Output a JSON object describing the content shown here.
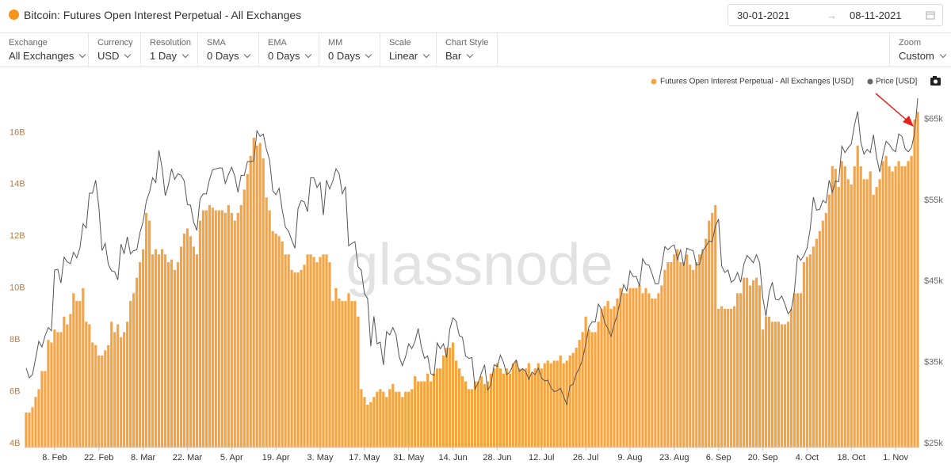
{
  "header": {
    "title": "Bitcoin: Futures Open Interest Perpetual - All Exchanges",
    "date_start": "30-01-2021",
    "date_end": "08-11-2021"
  },
  "controls": [
    {
      "label": "Exchange",
      "value": "All Exchanges"
    },
    {
      "label": "Currency",
      "value": "USD"
    },
    {
      "label": "Resolution",
      "value": "1 Day"
    },
    {
      "label": "SMA",
      "value": "0 Days"
    },
    {
      "label": "EMA",
      "value": "0 Days"
    },
    {
      "label": "MM",
      "value": "0 Days"
    },
    {
      "label": "Scale",
      "value": "Linear"
    },
    {
      "label": "Chart Style",
      "value": "Bar"
    },
    {
      "label": "Zoom",
      "value": "Custom"
    }
  ],
  "chart_data": {
    "type": "bar",
    "watermark": "glassnode",
    "grid": false,
    "legend": "top-right",
    "categories": [
      null,
      null,
      null,
      null,
      null,
      null,
      null,
      null,
      null,
      "8. Feb",
      null,
      null,
      null,
      null,
      null,
      null,
      null,
      null,
      null,
      null,
      null,
      null,
      null,
      "22. Feb",
      null,
      null,
      null,
      null,
      null,
      null,
      null,
      null,
      null,
      null,
      null,
      null,
      null,
      "8. Mar",
      null,
      null,
      null,
      null,
      null,
      null,
      null,
      null,
      null,
      null,
      null,
      null,
      null,
      "22. Mar",
      null,
      null,
      null,
      null,
      null,
      null,
      null,
      null,
      null,
      null,
      null,
      null,
      null,
      "5. Apr",
      null,
      null,
      null,
      null,
      null,
      null,
      null,
      null,
      null,
      null,
      null,
      null,
      null,
      "19. Apr",
      null,
      null,
      null,
      null,
      null,
      null,
      null,
      null,
      null,
      null,
      null,
      null,
      null,
      "3. May",
      null,
      null,
      null,
      null,
      null,
      null,
      null,
      null,
      null,
      null,
      null,
      null,
      null,
      "17. May",
      null,
      null,
      null,
      null,
      null,
      null,
      null,
      null,
      null,
      null,
      null,
      null,
      null,
      "31. May",
      null,
      null,
      null,
      null,
      null,
      null,
      null,
      null,
      null,
      null,
      null,
      null,
      null,
      "14. Jun",
      null,
      null,
      null,
      null,
      null,
      null,
      null,
      null,
      null,
      null,
      null,
      null,
      null,
      "28. Jun",
      null,
      null,
      null,
      null,
      null,
      null,
      null,
      null,
      null,
      null,
      null,
      null,
      null,
      "12. Jul",
      null,
      null,
      null,
      null,
      null,
      null,
      null,
      null,
      null,
      null,
      null,
      null,
      null,
      "26. Jul",
      null,
      null,
      null,
      null,
      null,
      null,
      null,
      null,
      null,
      null,
      null,
      null,
      null,
      "9. Aug",
      null,
      null,
      null,
      null,
      null,
      null,
      null,
      null,
      null,
      null,
      null,
      null,
      null,
      "23. Aug",
      null,
      null,
      null,
      null,
      null,
      null,
      null,
      null,
      null,
      null,
      null,
      null,
      null,
      "6. Sep",
      null,
      null,
      null,
      null,
      null,
      null,
      null,
      null,
      null,
      null,
      null,
      null,
      null,
      "20. Sep",
      null,
      null,
      null,
      null,
      null,
      null,
      null,
      null,
      null,
      null,
      null,
      null,
      null,
      "4. Oct",
      null,
      null,
      null,
      null,
      null,
      null,
      null,
      null,
      null,
      null,
      null,
      null,
      null,
      "18. Oct",
      null,
      null,
      null,
      null,
      null,
      null,
      null,
      null,
      null,
      null,
      null,
      null,
      null,
      "1. Nov",
      null,
      null,
      null,
      null,
      null,
      null,
      null
    ],
    "ylim": [
      3.85,
      17.6
    ],
    "yticks": [
      {
        "value": 4,
        "label": "4B"
      },
      {
        "value": 6,
        "label": "6B"
      },
      {
        "value": 8,
        "label": "8B"
      },
      {
        "value": 10,
        "label": "10B"
      },
      {
        "value": 12,
        "label": "12B"
      },
      {
        "value": 14,
        "label": "14B"
      },
      {
        "value": 16,
        "label": "16B"
      }
    ],
    "y2lim": [
      24500,
      68500
    ],
    "y2ticks": [
      {
        "value": 25000,
        "label": "$25k"
      },
      {
        "value": 35000,
        "label": "$35k"
      },
      {
        "value": 45000,
        "label": "$45k"
      },
      {
        "value": 55000,
        "label": "$55k"
      },
      {
        "value": 65000,
        "label": "$65k"
      }
    ],
    "series": [
      {
        "name": "Futures Open Interest Perpetual - All Exchanges [USD]",
        "color": "#f7a440",
        "values": [
          5.2,
          5.2,
          5.4,
          5.8,
          6.1,
          6.8,
          6.8,
          8.0,
          7.9,
          8.4,
          8.3,
          8.3,
          8.9,
          8.6,
          9.0,
          9.8,
          9.5,
          9.5,
          10.0,
          8.7,
          8.6,
          7.9,
          7.8,
          7.4,
          7.4,
          7.6,
          7.8,
          8.7,
          8.3,
          8.6,
          8.1,
          8.3,
          8.7,
          9.5,
          9.8,
          10.4,
          11.0,
          11.5,
          12.9,
          12.6,
          11.3,
          11.5,
          11.3,
          11.5,
          11.3,
          11.0,
          11.1,
          10.7,
          11.0,
          11.6,
          12.1,
          12.3,
          12.0,
          11.6,
          11.3,
          12.6,
          13.0,
          13.0,
          13.2,
          13.1,
          13.0,
          13.0,
          13.0,
          12.9,
          13.2,
          12.9,
          12.6,
          12.9,
          13.2,
          13.8,
          14.4,
          15.1,
          15.8,
          15.5,
          15.6,
          15.0,
          13.5,
          13.0,
          12.2,
          12.1,
          12.0,
          11.8,
          11.3,
          11.3,
          10.7,
          10.6,
          10.6,
          10.7,
          10.9,
          11.3,
          11.3,
          11.2,
          11.0,
          11.2,
          11.3,
          11.3,
          11.0,
          9.5,
          10.0,
          9.6,
          9.5,
          9.5,
          9.8,
          9.5,
          9.5,
          8.9,
          6.1,
          5.8,
          5.5,
          5.6,
          5.8,
          6.0,
          6.1,
          6.0,
          5.8,
          6.1,
          6.3,
          6.0,
          6.0,
          5.8,
          6.0,
          6.0,
          6.1,
          6.6,
          6.4,
          6.4,
          6.4,
          6.7,
          6.4,
          6.7,
          6.9,
          6.9,
          7.4,
          7.7,
          7.7,
          7.9,
          7.2,
          6.9,
          6.6,
          6.4,
          6.1,
          6.1,
          6.4,
          6.4,
          6.6,
          6.3,
          6.4,
          6.7,
          6.9,
          7.1,
          6.9,
          6.7,
          6.9,
          6.7,
          7.1,
          7.2,
          6.9,
          6.9,
          6.9,
          7.1,
          6.7,
          6.9,
          7.1,
          6.9,
          7.1,
          7.2,
          7.1,
          7.2,
          7.2,
          7.4,
          7.1,
          7.2,
          7.4,
          7.5,
          7.7,
          8.0,
          8.3,
          8.9,
          8.4,
          8.3,
          8.3,
          8.7,
          9.2,
          9.3,
          9.5,
          9.2,
          9.3,
          9.6,
          10.0,
          9.8,
          9.8,
          10.0,
          10.0,
          10.0,
          10.1,
          9.8,
          10.0,
          9.8,
          9.6,
          9.6,
          9.8,
          10.1,
          10.7,
          11.0,
          11.0,
          11.3,
          11.5,
          11.0,
          11.0,
          11.3,
          10.9,
          10.7,
          11.0,
          11.3,
          11.5,
          11.9,
          12.6,
          12.9,
          13.2,
          9.2,
          9.3,
          9.2,
          9.2,
          9.2,
          9.3,
          9.8,
          9.8,
          10.4,
          10.4,
          10.1,
          10.3,
          10.4,
          10.1,
          8.4,
          8.9,
          8.9,
          8.7,
          8.7,
          8.7,
          8.6,
          8.6,
          8.7,
          9.2,
          9.8,
          9.8,
          9.8,
          11.0,
          11.2,
          11.3,
          11.6,
          11.9,
          12.2,
          12.6,
          12.9,
          13.6,
          14.7,
          14.6,
          13.9,
          14.9,
          14.7,
          14.2,
          14.0,
          14.7,
          15.5,
          14.7,
          14.2,
          14.2,
          14.5,
          13.6,
          13.9,
          14.2,
          14.9,
          15.1,
          14.7,
          14.5,
          14.7,
          14.9,
          14.7,
          14.7,
          14.9,
          15.1,
          16.5,
          16.8
        ]
      },
      {
        "name": "Price [USD]",
        "color": "#555555",
        "type": "line",
        "axis": "y2",
        "values": [
          34300,
          33100,
          33500,
          35500,
          37600,
          36900,
          38300,
          39300,
          38900,
          46400,
          46500,
          44800,
          48000,
          47400,
          47200,
          48600,
          47900,
          49100,
          52100,
          51600,
          55900,
          55900,
          57500,
          54200,
          48800,
          49700,
          47100,
          46300,
          46200,
          45200,
          49600,
          48400,
          50500,
          48400,
          48800,
          48900,
          51000,
          52400,
          54900,
          56000,
          57800,
          57200,
          61200,
          59000,
          55600,
          56900,
          58900,
          57600,
          58300,
          58100,
          57400,
          54500,
          54400,
          52300,
          51300,
          55200,
          55800,
          55800,
          57600,
          58800,
          58900,
          59000,
          59000,
          57100,
          58200,
          59100,
          58000,
          56000,
          58100,
          58100,
          59800,
          59800,
          59900,
          63600,
          62900,
          63200,
          61300,
          60000,
          56200,
          55700,
          56500,
          53800,
          51700,
          51200,
          50100,
          49100,
          54000,
          55000,
          54800,
          53600,
          57800,
          57800,
          56600,
          57200,
          53200,
          57500,
          56400,
          57400,
          58900,
          58300,
          55800,
          56700,
          49400,
          49700,
          49900,
          46800,
          46400,
          43500,
          42900,
          37000,
          40700,
          37300,
          37500,
          34700,
          38800,
          38400,
          39300,
          38400,
          35700,
          34600,
          35700,
          37300,
          36700,
          37600,
          39200,
          36900,
          35500,
          35800,
          33600,
          33400,
          37400,
          36700,
          37300,
          35600,
          39100,
          40500,
          40100,
          38300,
          38100,
          35800,
          35500,
          35600,
          31700,
          32500,
          33700,
          34700,
          31600,
          32200,
          34700,
          34500,
          35900,
          35000,
          33500,
          33800,
          34700,
          35300,
          33900,
          34200,
          33900,
          32900,
          33800,
          33500,
          34300,
          33100,
          32700,
          32800,
          31900,
          31400,
          31500,
          31800,
          30800,
          29800,
          32100,
          32300,
          33600,
          34300,
          35400,
          37300,
          39400,
          40000,
          40000,
          42200,
          41500,
          39900,
          39200,
          38200,
          39700,
          40900,
          42800,
          44600,
          43800,
          46300,
          45600,
          45600,
          44400,
          47800,
          47100,
          47000,
          45900,
          44700,
          44700,
          46800,
          49300,
          48900,
          49300,
          49500,
          47700,
          48900,
          46900,
          49100,
          48900,
          48800,
          47000,
          47100,
          48800,
          49300,
          50000,
          49900,
          51800,
          52700,
          46900,
          46100,
          46400,
          44900,
          45200,
          46100,
          44900,
          47100,
          48200,
          47800,
          47300,
          48300,
          47300,
          43000,
          40700,
          43600,
          44900,
          42800,
          42700,
          43200,
          42200,
          41000,
          41500,
          43800,
          48200,
          47600,
          48200,
          49100,
          51500,
          55400,
          53800,
          53900,
          55000,
          54700,
          57500,
          56000,
          57400,
          57300,
          61700,
          60900,
          61500,
          62000,
          64300,
          66000,
          62200,
          60700,
          61300,
          60900,
          63100,
          60300,
          58500,
          60600,
          62300,
          61900,
          61300,
          61000,
          63200,
          62900,
          61400,
          61000,
          61500,
          63300,
          67600
        ]
      }
    ]
  }
}
